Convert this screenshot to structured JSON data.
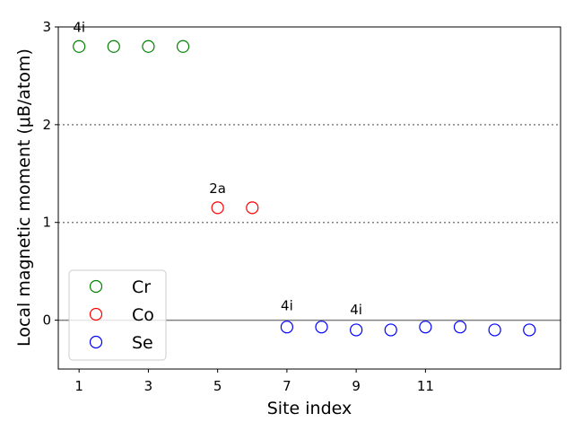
{
  "chart_data": {
    "type": "scatter",
    "xlabel": "Site index",
    "ylabel": "Local magnetic moment (μB/atom)",
    "xlim": [
      0.4,
      14.9
    ],
    "ylim": [
      -0.5,
      3.0
    ],
    "xticks": [
      1,
      3,
      5,
      7,
      9,
      11
    ],
    "yticks": [
      0,
      1,
      2,
      3
    ],
    "hlines": [
      {
        "y": 2,
        "style": "dotted",
        "color": "#808080"
      },
      {
        "y": 1,
        "style": "dotted",
        "color": "#808080"
      },
      {
        "y": 0,
        "style": "solid",
        "color": "#808080"
      }
    ],
    "series": [
      {
        "name": "Cr",
        "color": "#008000",
        "x": [
          1,
          2,
          3,
          4
        ],
        "y": [
          2.8,
          2.8,
          2.8,
          2.8
        ]
      },
      {
        "name": "Co",
        "color": "#ff0000",
        "x": [
          5,
          6
        ],
        "y": [
          1.15,
          1.15
        ]
      },
      {
        "name": "Se",
        "color": "#0000ff",
        "x": [
          7,
          8,
          9,
          10,
          11,
          12,
          13,
          14
        ],
        "y": [
          -0.07,
          -0.07,
          -0.1,
          -0.1,
          -0.07,
          -0.07,
          -0.1,
          -0.1
        ]
      }
    ],
    "annotations": [
      {
        "text": "4i",
        "x": 1,
        "y": 2.95
      },
      {
        "text": "2a",
        "x": 5,
        "y": 1.3
      },
      {
        "text": "4i",
        "x": 7,
        "y": 0.1
      },
      {
        "text": "4i",
        "x": 9,
        "y": 0.06
      }
    ],
    "legend": "lower-left",
    "grid": false
  }
}
